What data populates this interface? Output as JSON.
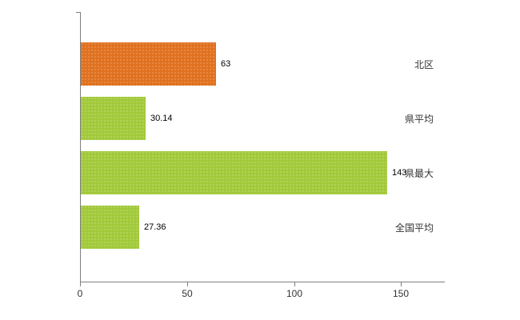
{
  "chart_data": {
    "type": "bar",
    "orientation": "horizontal",
    "categories": [
      "北区",
      "県平均",
      "県最大",
      "全国平均"
    ],
    "values": [
      63,
      30.14,
      143,
      27.36
    ],
    "value_labels": [
      "63",
      "30.14",
      "143",
      "27.36"
    ],
    "bar_colors": [
      "#e0711f",
      "#a2c93a",
      "#a2c93a",
      "#a2c93a"
    ],
    "title": "",
    "xlabel": "",
    "ylabel": "",
    "xlim": [
      0,
      170
    ],
    "xticks": [
      0,
      50,
      100,
      150
    ],
    "xtick_labels": [
      "0",
      "50",
      "100",
      "150"
    ],
    "grid": false,
    "legend": "none",
    "axis_color": "#7f7f7f"
  }
}
